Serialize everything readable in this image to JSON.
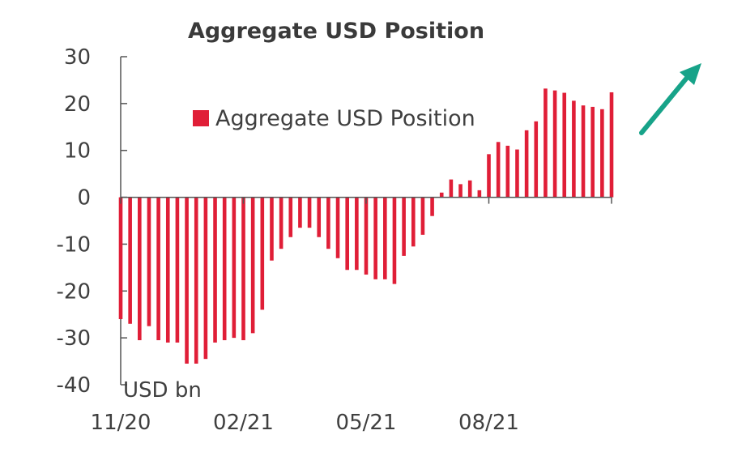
{
  "chart_data": {
    "type": "bar",
    "title": "Aggregate USD Position",
    "unit_label": "USD bn",
    "ylim": [
      -40,
      30
    ],
    "y_ticks": [
      30,
      20,
      10,
      0,
      -10,
      -20,
      -30,
      -40
    ],
    "x_tick_labels": [
      {
        "label": "11/20",
        "index": 0
      },
      {
        "label": "02/21",
        "index": 13
      },
      {
        "label": "05/21",
        "index": 26
      },
      {
        "label": "08/21",
        "index": 39
      }
    ],
    "legend": {
      "position": "top-center",
      "label": "Aggregate USD Position"
    },
    "colors": {
      "bar": "#e01e37",
      "axis": "#555555",
      "arrow": "#17a389"
    },
    "series": [
      {
        "name": "Aggregate USD Position",
        "values": [
          -26,
          -27,
          -30.5,
          -27.5,
          -30.5,
          -31,
          -31,
          -35.5,
          -35.5,
          -34.5,
          -31,
          -30.5,
          -30,
          -30.5,
          -29,
          -24,
          -13.5,
          -11,
          -8.5,
          -6.5,
          -6.5,
          -8.5,
          -11,
          -13,
          -15.5,
          -15.5,
          -16.5,
          -17.5,
          -17.5,
          -18.5,
          -12.5,
          -10.5,
          -8,
          -4,
          1,
          3.8,
          2.8,
          3.6,
          1.5,
          9.2,
          11.8,
          11,
          10.2,
          14.3,
          16.2,
          23.2,
          22.8,
          22.3,
          20.6,
          19.6,
          19.3,
          18.8,
          22.4
        ]
      }
    ]
  }
}
